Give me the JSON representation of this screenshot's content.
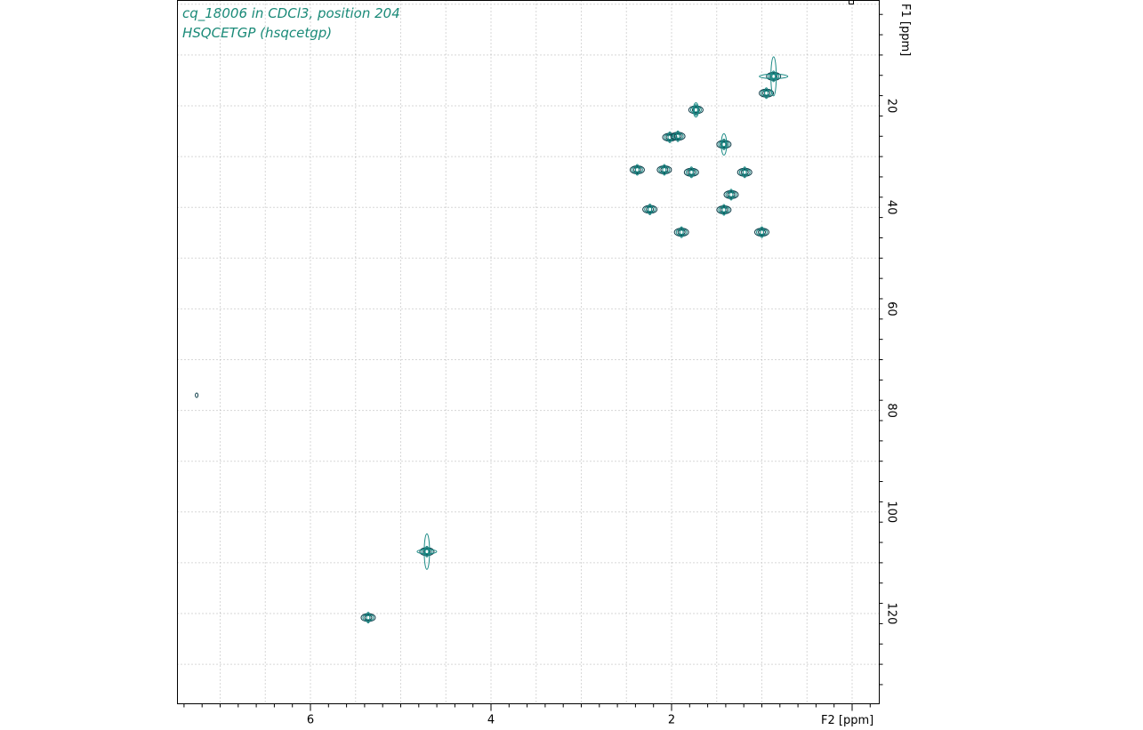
{
  "header": {
    "line1": "cq_18006 in CDCl3, position 204",
    "line2": "HSQCETGP (hsqcetgp)"
  },
  "colors": {
    "contour_dark": "#0b3b47",
    "contour_teal": "#1a8a85",
    "title": "#1a8a78",
    "grid": "#b0b0b0"
  },
  "chart_data": {
    "type": "scatter",
    "subtype": "2D NMR HSQC contour plot",
    "title": "cq_18006 in CDCl3, position 204",
    "subtitle": "HSQCETGP (hsqcetgp)",
    "xlabel": "F2 [ppm]",
    "ylabel": "F1 [ppm]",
    "x_reversed": true,
    "xlim": [
      7.5,
      -0.6
    ],
    "ylim": [
      -4,
      138
    ],
    "x_ticks": [
      6,
      4,
      2,
      0
    ],
    "x_tick_labels": [
      "6",
      "4",
      "2",
      ""
    ],
    "y_ticks": [
      20,
      40,
      60,
      80,
      100,
      120
    ],
    "y_tick_labels": [
      "20",
      "40",
      "60",
      "80",
      "100",
      "120"
    ],
    "grid": true,
    "peaks": [
      {
        "x": 0.87,
        "y": 14.2
      },
      {
        "x": 0.95,
        "y": 17.5
      },
      {
        "x": 1.73,
        "y": 20.8
      },
      {
        "x": 2.02,
        "y": 26.2
      },
      {
        "x": 1.93,
        "y": 26.0
      },
      {
        "x": 1.42,
        "y": 27.6
      },
      {
        "x": 2.38,
        "y": 32.6
      },
      {
        "x": 2.08,
        "y": 32.6
      },
      {
        "x": 1.78,
        "y": 33.1
      },
      {
        "x": 1.19,
        "y": 33.1
      },
      {
        "x": 1.34,
        "y": 37.5
      },
      {
        "x": 2.24,
        "y": 40.4
      },
      {
        "x": 1.42,
        "y": 40.5
      },
      {
        "x": 1.89,
        "y": 44.9
      },
      {
        "x": 1.0,
        "y": 44.9
      },
      {
        "x": 4.71,
        "y": 107.8
      },
      {
        "x": 5.36,
        "y": 120.8
      },
      {
        "x": 7.26,
        "y": 77.0
      }
    ]
  }
}
